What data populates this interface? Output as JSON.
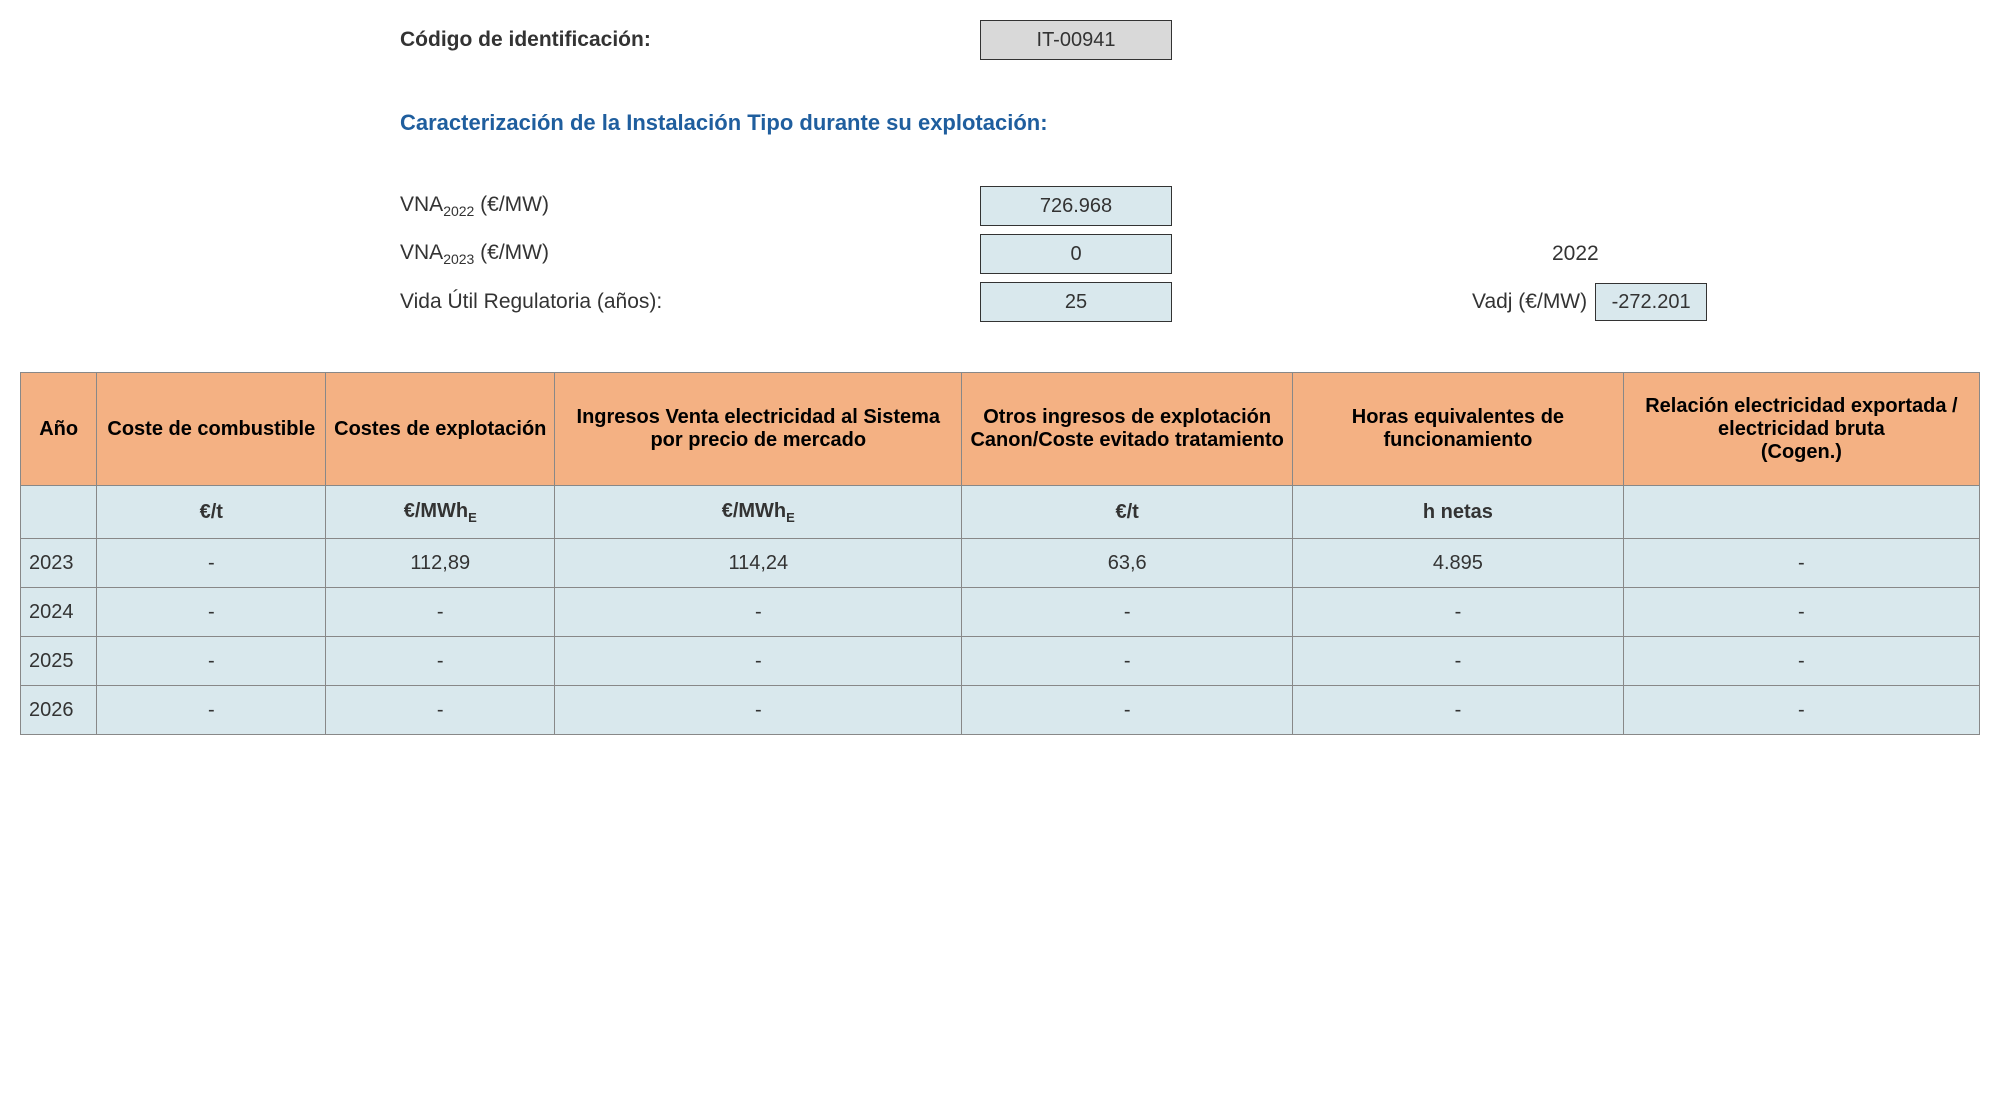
{
  "header": {
    "codigo_label": "Código de identificación:",
    "codigo_value": "IT-00941",
    "caracterizacion_label": "Caracterización de la Instalación Tipo durante su explotación:",
    "vna2022_label_prefix": "VNA",
    "vna2022_sub": "2022",
    "vna2022_label_suffix": " (€/MW)",
    "vna2022_value": "726.968",
    "vna2023_label_prefix": "VNA",
    "vna2023_sub": "2023",
    "vna2023_label_suffix": " (€/MW)",
    "vna2023_value": "0",
    "year_right": "2022",
    "vida_label": "Vida Útil Regulatoria (años):",
    "vida_value": "25",
    "vadj_label": "Vadj (€/MW)",
    "vadj_value": "-272.201"
  },
  "table": {
    "columns": [
      "Año",
      "Coste de combustible",
      "Costes de explotación",
      "Ingresos Venta electricidad al Sistema por precio de mercado",
      "Otros ingresos de explotación Canon/Coste evitado tratamiento",
      "Horas equivalentes de funcionamiento",
      "Relación electricidad exportada / electricidad bruta\n(Cogen.)"
    ],
    "units": [
      "",
      "€/t",
      "€/MWh",
      "€/MWh",
      "€/t",
      "h netas",
      ""
    ],
    "units_sub": [
      "",
      "",
      "E",
      "E",
      "",
      "",
      ""
    ],
    "rows": [
      {
        "year": "2023",
        "c1": "-",
        "c2": "112,89",
        "c3": "114,24",
        "c4": "63,6",
        "c5": "4.895",
        "c6": "-"
      },
      {
        "year": "2024",
        "c1": "-",
        "c2": "-",
        "c3": "-",
        "c4": "-",
        "c5": "-",
        "c6": "-"
      },
      {
        "year": "2025",
        "c1": "-",
        "c2": "-",
        "c3": "-",
        "c4": "-",
        "c5": "-",
        "c6": "-"
      },
      {
        "year": "2026",
        "c1": "-",
        "c2": "-",
        "c3": "-",
        "c4": "-",
        "c5": "-",
        "c6": "-"
      }
    ],
    "col_widths": [
      "60px",
      "180px",
      "180px",
      "320px",
      "260px",
      "260px",
      "280px"
    ]
  },
  "colors": {
    "heading": "#1f5e9e",
    "header_bg": "#f4b183",
    "cell_bg": "#d9e8ed",
    "gray_bg": "#d9d9d9",
    "border": "#888"
  }
}
